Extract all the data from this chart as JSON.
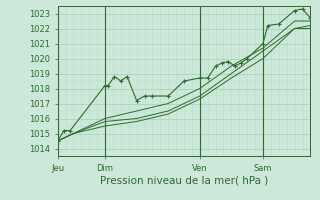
{
  "background_color": "#cce8d8",
  "grid_color_major": "#aaccbb",
  "grid_color_minor": "#bbddd0",
  "line_color": "#2d6a2d",
  "marker_color": "#2d6a2d",
  "xlabel": "Pression niveau de la mer( hPa )",
  "xlabel_fontsize": 7.5,
  "ylim": [
    1013.5,
    1023.5
  ],
  "yticks": [
    1014,
    1015,
    1016,
    1017,
    1018,
    1019,
    1020,
    1021,
    1022,
    1023
  ],
  "tick_label_fontsize": 6,
  "day_labels": [
    "Jeu",
    "Dim",
    "Ven",
    "Sam"
  ],
  "day_positions": [
    0.0,
    3.0,
    9.0,
    13.0
  ],
  "xlim": [
    0,
    16
  ],
  "series": [
    {
      "x": [
        0.0,
        0.4,
        0.8,
        3.0,
        3.2,
        3.6,
        4.0,
        4.4,
        5.0,
        5.5,
        6.0,
        7.0,
        8.0,
        9.0,
        9.5,
        10.0,
        10.4,
        10.8,
        11.2,
        11.6,
        12.0,
        13.0,
        13.3,
        14.0,
        15.0,
        15.5,
        16.0
      ],
      "y": [
        1014.5,
        1015.2,
        1015.2,
        1018.2,
        1018.2,
        1018.8,
        1018.5,
        1018.8,
        1017.2,
        1017.5,
        1017.5,
        1017.5,
        1018.5,
        1018.7,
        1018.7,
        1019.5,
        1019.7,
        1019.8,
        1019.5,
        1019.7,
        1020.0,
        1021.0,
        1022.2,
        1022.3,
        1023.2,
        1023.3,
        1022.7
      ],
      "has_markers": true
    },
    {
      "x": [
        0.0,
        1.0,
        3.0,
        5.0,
        7.0,
        9.0,
        11.0,
        13.0,
        15.0,
        16.0
      ],
      "y": [
        1014.5,
        1015.0,
        1016.0,
        1016.5,
        1017.0,
        1018.0,
        1019.5,
        1020.7,
        1022.5,
        1022.5
      ],
      "has_markers": false
    },
    {
      "x": [
        0.0,
        1.0,
        3.0,
        5.0,
        7.0,
        9.0,
        11.0,
        13.0,
        15.0,
        16.0
      ],
      "y": [
        1014.5,
        1015.0,
        1015.8,
        1016.0,
        1016.5,
        1017.5,
        1019.0,
        1020.5,
        1022.0,
        1022.2
      ],
      "has_markers": false
    },
    {
      "x": [
        0.0,
        1.0,
        3.0,
        5.0,
        7.0,
        9.0,
        11.0,
        13.0,
        15.0,
        16.0
      ],
      "y": [
        1014.5,
        1015.0,
        1015.5,
        1015.8,
        1016.3,
        1017.3,
        1018.7,
        1020.0,
        1022.0,
        1022.0
      ],
      "has_markers": false
    }
  ],
  "num_minor_x": 3,
  "minor_x_step": 0.5
}
